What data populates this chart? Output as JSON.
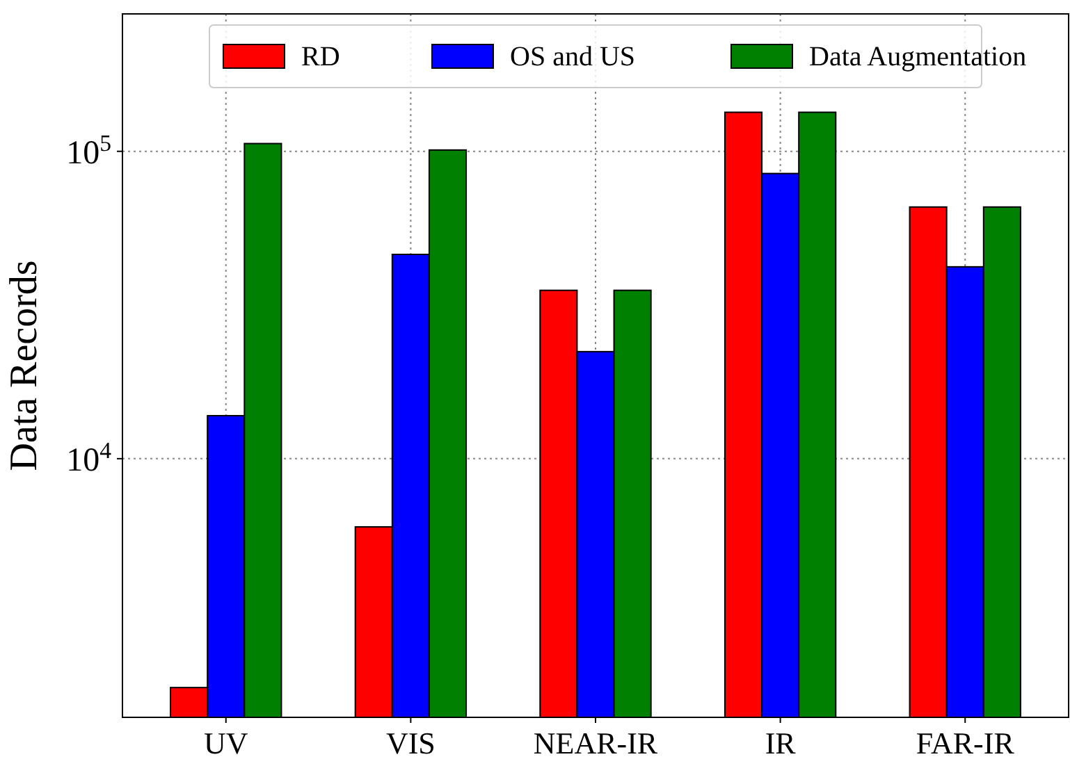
{
  "chart_data": {
    "type": "bar",
    "ylabel": "Data Records",
    "categories": [
      "UV",
      "VIS",
      "NEAR-IR",
      "IR",
      "FAR-IR"
    ],
    "series": [
      {
        "name": "RD",
        "color": "#ff0000",
        "values": [
          1800,
          6000,
          35300,
          134000,
          65900
        ]
      },
      {
        "name": "OS and US",
        "color": "#0000ff",
        "values": [
          13800,
          46200,
          22300,
          84700,
          42100
        ]
      },
      {
        "name": "Data Augmentation",
        "color": "#008000",
        "values": [
          106000,
          101000,
          35300,
          134000,
          65900
        ]
      }
    ],
    "log": true,
    "ylim": [
      1440,
      280000
    ],
    "yticks": [
      {
        "value": 10000,
        "label": "10$^{4}$"
      },
      {
        "value": 100000,
        "label": "10$^{5}$"
      }
    ],
    "grid": true,
    "legend": "top"
  }
}
